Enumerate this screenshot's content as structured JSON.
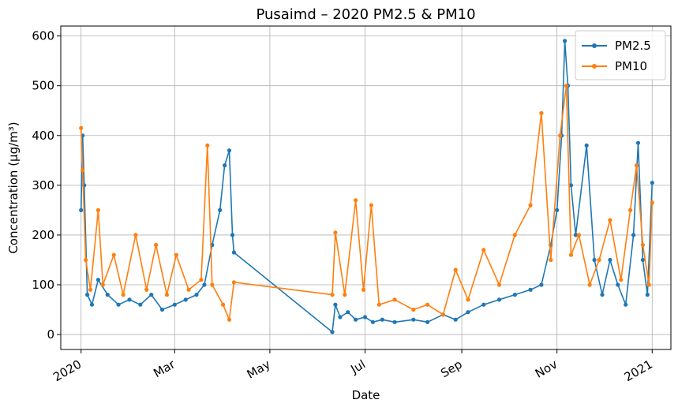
{
  "chart_data": {
    "type": "line",
    "title": "Pusaimd – 2020 PM2.5 & PM10",
    "xlabel": "Date",
    "ylabel": "Concentration (µg/m³)",
    "xlim": [
      "2019-12-19",
      "2021-01-13"
    ],
    "ylim": [
      -30,
      620
    ],
    "grid": true,
    "legend_position": "top-right",
    "x_ticks": [
      {
        "date": "2020-01-01",
        "label": "2020"
      },
      {
        "date": "2020-03-01",
        "label": "Mar"
      },
      {
        "date": "2020-05-01",
        "label": "May"
      },
      {
        "date": "2020-07-01",
        "label": "Jul"
      },
      {
        "date": "2020-09-01",
        "label": "Sep"
      },
      {
        "date": "2020-11-01",
        "label": "Nov"
      },
      {
        "date": "2021-01-01",
        "label": "2021"
      }
    ],
    "y_ticks": [
      0,
      100,
      200,
      300,
      400,
      500,
      600
    ],
    "series": [
      {
        "name": "PM2.5",
        "color": "#1f77b4",
        "points": [
          [
            "2020-01-01",
            250
          ],
          [
            "2020-01-02",
            400
          ],
          [
            "2020-01-03",
            300
          ],
          [
            "2020-01-05",
            80
          ],
          [
            "2020-01-08",
            60
          ],
          [
            "2020-01-12",
            110
          ],
          [
            "2020-01-18",
            80
          ],
          [
            "2020-01-25",
            60
          ],
          [
            "2020-02-01",
            70
          ],
          [
            "2020-02-08",
            60
          ],
          [
            "2020-02-15",
            80
          ],
          [
            "2020-02-22",
            50
          ],
          [
            "2020-03-01",
            60
          ],
          [
            "2020-03-08",
            70
          ],
          [
            "2020-03-15",
            80
          ],
          [
            "2020-03-20",
            100
          ],
          [
            "2020-03-25",
            180
          ],
          [
            "2020-03-30",
            250
          ],
          [
            "2020-04-02",
            340
          ],
          [
            "2020-04-05",
            370
          ],
          [
            "2020-04-07",
            200
          ],
          [
            "2020-04-08",
            165
          ],
          [
            "2020-06-10",
            5
          ],
          [
            "2020-06-12",
            60
          ],
          [
            "2020-06-15",
            35
          ],
          [
            "2020-06-20",
            45
          ],
          [
            "2020-06-25",
            30
          ],
          [
            "2020-07-01",
            35
          ],
          [
            "2020-07-06",
            25
          ],
          [
            "2020-07-12",
            30
          ],
          [
            "2020-07-20",
            25
          ],
          [
            "2020-08-01",
            30
          ],
          [
            "2020-08-10",
            25
          ],
          [
            "2020-08-20",
            40
          ],
          [
            "2020-08-28",
            30
          ],
          [
            "2020-09-05",
            45
          ],
          [
            "2020-09-15",
            60
          ],
          [
            "2020-09-25",
            70
          ],
          [
            "2020-10-05",
            80
          ],
          [
            "2020-10-15",
            90
          ],
          [
            "2020-10-22",
            100
          ],
          [
            "2020-10-28",
            180
          ],
          [
            "2020-11-01",
            250
          ],
          [
            "2020-11-04",
            400
          ],
          [
            "2020-11-06",
            590
          ],
          [
            "2020-11-08",
            500
          ],
          [
            "2020-11-10",
            300
          ],
          [
            "2020-11-13",
            200
          ],
          [
            "2020-11-20",
            380
          ],
          [
            "2020-11-25",
            150
          ],
          [
            "2020-11-30",
            80
          ],
          [
            "2020-12-05",
            150
          ],
          [
            "2020-12-10",
            100
          ],
          [
            "2020-12-15",
            60
          ],
          [
            "2020-12-20",
            200
          ],
          [
            "2020-12-23",
            385
          ],
          [
            "2020-12-26",
            150
          ],
          [
            "2020-12-29",
            80
          ],
          [
            "2021-01-01",
            305
          ]
        ]
      },
      {
        "name": "PM10",
        "color": "#ff7f0e",
        "points": [
          [
            "2020-01-01",
            415
          ],
          [
            "2020-01-02",
            330
          ],
          [
            "2020-01-04",
            150
          ],
          [
            "2020-01-07",
            90
          ],
          [
            "2020-01-12",
            250
          ],
          [
            "2020-01-15",
            100
          ],
          [
            "2020-01-22",
            160
          ],
          [
            "2020-01-28",
            80
          ],
          [
            "2020-02-05",
            200
          ],
          [
            "2020-02-12",
            90
          ],
          [
            "2020-02-18",
            180
          ],
          [
            "2020-02-25",
            80
          ],
          [
            "2020-03-02",
            160
          ],
          [
            "2020-03-10",
            90
          ],
          [
            "2020-03-18",
            110
          ],
          [
            "2020-03-22",
            380
          ],
          [
            "2020-03-25",
            100
          ],
          [
            "2020-04-01",
            60
          ],
          [
            "2020-04-05",
            30
          ],
          [
            "2020-04-08",
            105
          ],
          [
            "2020-06-10",
            80
          ],
          [
            "2020-06-12",
            205
          ],
          [
            "2020-06-18",
            80
          ],
          [
            "2020-06-25",
            270
          ],
          [
            "2020-06-30",
            90
          ],
          [
            "2020-07-05",
            260
          ],
          [
            "2020-07-10",
            60
          ],
          [
            "2020-07-20",
            70
          ],
          [
            "2020-08-01",
            50
          ],
          [
            "2020-08-10",
            60
          ],
          [
            "2020-08-20",
            40
          ],
          [
            "2020-08-28",
            130
          ],
          [
            "2020-09-05",
            70
          ],
          [
            "2020-09-15",
            170
          ],
          [
            "2020-09-25",
            100
          ],
          [
            "2020-10-05",
            200
          ],
          [
            "2020-10-15",
            260
          ],
          [
            "2020-10-22",
            445
          ],
          [
            "2020-10-28",
            150
          ],
          [
            "2020-11-03",
            400
          ],
          [
            "2020-11-07",
            500
          ],
          [
            "2020-11-10",
            160
          ],
          [
            "2020-11-15",
            200
          ],
          [
            "2020-11-22",
            100
          ],
          [
            "2020-11-28",
            150
          ],
          [
            "2020-12-05",
            230
          ],
          [
            "2020-12-12",
            110
          ],
          [
            "2020-12-18",
            250
          ],
          [
            "2020-12-22",
            340
          ],
          [
            "2020-12-26",
            180
          ],
          [
            "2020-12-30",
            100
          ],
          [
            "2021-01-01",
            265
          ]
        ]
      }
    ]
  }
}
